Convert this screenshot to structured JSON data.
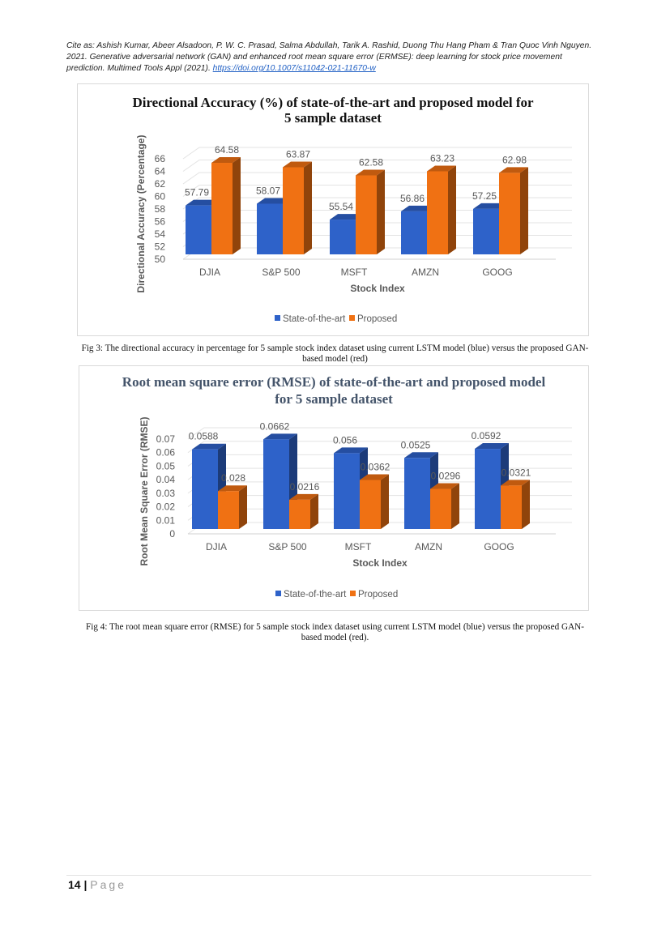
{
  "citation": {
    "text": "Cite as: Ashish Kumar, Abeer Alsadoon, P. W. C. Prasad, Salma Abdullah, Tarik A. Rashid, Duong Thu Hang Pham & Tran Quoc Vinh Nguyen. 2021. Generative adversarial network (GAN) and enhanced root mean square error (ERMSE): deep learning for stock price movement prediction. Multimed Tools Appl (2021). ",
    "link": "https://doi.org/10.1007/s11042-021-11670-w"
  },
  "captions": {
    "fig3": "Fig 3: The directional accuracy in percentage for 5 sample stock index dataset using current LSTM model (blue) versus the proposed GAN-based model (red)",
    "fig4": "Fig 4: The root mean square error (RMSE) for 5 sample stock index dataset using current LSTM model (blue) versus the proposed GAN-based model (red)."
  },
  "footer": {
    "page_number": "14",
    "separator": "|",
    "page_label": "Page"
  },
  "colors": {
    "state_of_the_art": "#2e62c9",
    "proposed": "#f07113"
  },
  "chart_data": [
    {
      "type": "bar",
      "title": "Directional Accuracy (%) of state-of-the-art and proposed model for 5 sample dataset",
      "xlabel": "Stock Index",
      "ylabel": "Directional Accuracy (Percentage)",
      "categories": [
        "DJIA",
        "S&P 500",
        "MSFT",
        "AMZN",
        "GOOG"
      ],
      "series": [
        {
          "name": "State-of-the-art",
          "values": [
            57.79,
            58.07,
            55.54,
            56.86,
            57.25
          ],
          "labels": [
            "57.79",
            "58.07",
            "55.54",
            "56.86",
            "57.25"
          ]
        },
        {
          "name": "Proposed",
          "values": [
            64.58,
            63.87,
            62.58,
            63.23,
            62.98
          ],
          "labels": [
            "64.58",
            "63.87",
            "62.58",
            "63.23",
            "62.98"
          ]
        }
      ],
      "yticks": [
        "50",
        "52",
        "54",
        "56",
        "58",
        "60",
        "62",
        "64",
        "66"
      ],
      "ylim": [
        50,
        66
      ],
      "grid": true,
      "legend": "bottom",
      "style": "3d-column"
    },
    {
      "type": "bar",
      "title": "Root mean square error (RMSE) of state-of-the-art and proposed model for 5 sample dataset",
      "xlabel": "Stock Index",
      "ylabel": "Root Mean Square Error (RMSE)",
      "categories": [
        "DJIA",
        "S&P 500",
        "MSFT",
        "AMZN",
        "GOOG"
      ],
      "series": [
        {
          "name": "State-of-the-art",
          "values": [
            0.0588,
            0.0662,
            0.056,
            0.0525,
            0.0592
          ],
          "labels": [
            "0.0588",
            "0.0662",
            "0.056",
            "0.0525",
            "0.0592"
          ]
        },
        {
          "name": "Proposed",
          "values": [
            0.028,
            0.0216,
            0.0362,
            0.0296,
            0.0321
          ],
          "labels": [
            "0.028",
            "0.0216",
            "0.0362",
            "0.0296",
            "0.0321"
          ]
        }
      ],
      "yticks": [
        "0",
        "0.01",
        "0.02",
        "0.03",
        "0.04",
        "0.05",
        "0.06",
        "0.07"
      ],
      "ylim": [
        0,
        0.07
      ],
      "grid": true,
      "legend": "bottom",
      "style": "3d-column"
    }
  ]
}
